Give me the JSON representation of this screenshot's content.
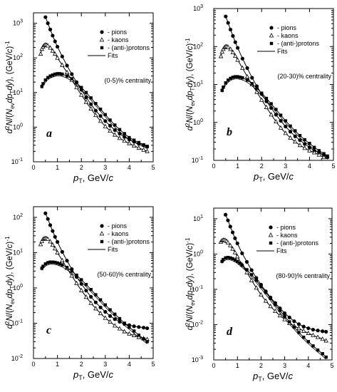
{
  "chart_data": [
    {
      "type": "scatter",
      "panel_label": "a",
      "centrality": "(0-5)% centrality",
      "xlabel": "p_T, GeV/c",
      "ylabel": "d^2N/(N_ev dp_T dy), (GeV/c)^-1",
      "x_range": [
        0,
        5
      ],
      "y_range": [
        0.1,
        2000
      ],
      "y_scale": "log",
      "x_ticks": [
        "0",
        "1",
        "2",
        "3",
        "4",
        "5"
      ],
      "y_ticks": [
        {
          "v": 0.1,
          "e": "-1"
        },
        {
          "v": 1,
          "e": "0"
        },
        {
          "v": 10,
          "e": "1"
        },
        {
          "v": 100,
          "e": "2"
        },
        {
          "v": 1000,
          "e": "3"
        }
      ],
      "legend": [
        "- pions",
        "- kaons",
        "- (anti-)protons",
        "Fits"
      ],
      "legend_placement": "top-right",
      "series": [
        {
          "name": "- pions",
          "marker": "filled-circle",
          "x": [
            0.5,
            0.6,
            0.7,
            0.8,
            0.9,
            1.0,
            1.2,
            1.4,
            1.6,
            1.8,
            2.0,
            2.2,
            2.4,
            2.6,
            2.8,
            3.0,
            3.2,
            3.4,
            3.6,
            3.8,
            4.0,
            4.2,
            4.4,
            4.6,
            4.75
          ],
          "y": [
            1500,
            1000,
            660,
            440,
            300,
            210,
            110,
            60,
            34,
            20,
            12,
            7.2,
            4.6,
            3.0,
            2.1,
            1.5,
            1.1,
            0.82,
            0.65,
            0.52,
            0.44,
            0.38,
            0.33,
            0.3,
            0.27
          ]
        },
        {
          "name": "- kaons",
          "marker": "open-triangle",
          "x": [
            0.3,
            0.35,
            0.4,
            0.45,
            0.5,
            0.55,
            0.6,
            0.7,
            0.8,
            0.9,
            1.0,
            1.2,
            1.4,
            1.6,
            1.8,
            2.0,
            2.2,
            2.4,
            2.6,
            2.8,
            3.0,
            3.2,
            3.4,
            3.6,
            3.8,
            4.0,
            4.2,
            4.4,
            4.6,
            4.75
          ],
          "y": [
            130,
            180,
            210,
            230,
            240,
            235,
            225,
            195,
            160,
            130,
            100,
            62,
            38,
            23,
            14,
            8.5,
            5.3,
            3.4,
            2.2,
            1.5,
            1.05,
            0.78,
            0.6,
            0.48,
            0.4,
            0.34,
            0.29,
            0.25,
            0.22,
            0.2
          ]
        },
        {
          "name": "- (anti-)protons",
          "marker": "filled-square",
          "x": [
            0.35,
            0.4,
            0.5,
            0.6,
            0.7,
            0.8,
            0.9,
            1.0,
            1.1,
            1.2,
            1.4,
            1.6,
            1.8,
            2.0,
            2.2,
            2.4,
            2.6,
            2.8,
            3.0,
            3.2,
            3.4,
            3.6,
            3.8,
            4.0,
            4.2,
            4.4,
            4.6,
            4.75
          ],
          "y": [
            15,
            18,
            23,
            27,
            30,
            32,
            34,
            35,
            35,
            34,
            30,
            25,
            19,
            14,
            10,
            7.0,
            4.8,
            3.3,
            2.3,
            1.6,
            1.15,
            0.85,
            0.65,
            0.5,
            0.42,
            0.36,
            0.31,
            0.28
          ]
        }
      ]
    },
    {
      "type": "scatter",
      "panel_label": "b",
      "centrality": "(20-30)% centrality",
      "xlabel": "p_T, GeV/c",
      "ylabel": "d^2N/(N_ev dp_T dy), (GeV/c)^-1",
      "x_range": [
        0,
        5
      ],
      "y_range": [
        0.1,
        1000
      ],
      "y_scale": "log",
      "x_ticks": [
        "0",
        "1",
        "2",
        "3",
        "4",
        "5"
      ],
      "y_ticks": [
        {
          "v": 0.1,
          "e": "-1"
        },
        {
          "v": 1,
          "e": "0"
        },
        {
          "v": 10,
          "e": "1"
        },
        {
          "v": 100,
          "e": "2"
        },
        {
          "v": 1000,
          "e": "3"
        }
      ],
      "legend": [
        "- pions",
        "- kaons",
        "- (anti-)protons",
        "Fits"
      ],
      "legend_placement": "top-right",
      "series": [
        {
          "name": "- pions",
          "marker": "filled-circle",
          "x": [
            0.5,
            0.6,
            0.7,
            0.8,
            0.9,
            1.0,
            1.2,
            1.4,
            1.6,
            1.8,
            2.0,
            2.2,
            2.4,
            2.6,
            2.8,
            3.0,
            3.2,
            3.4,
            3.6,
            3.8,
            4.0,
            4.2,
            4.4,
            4.6,
            4.75
          ],
          "y": [
            620,
            420,
            280,
            190,
            130,
            92,
            48,
            27,
            15,
            9,
            5.6,
            3.6,
            2.4,
            1.6,
            1.1,
            0.78,
            0.57,
            0.43,
            0.34,
            0.27,
            0.22,
            0.18,
            0.16,
            0.14,
            0.12
          ]
        },
        {
          "name": "- kaons",
          "marker": "open-triangle",
          "x": [
            0.3,
            0.35,
            0.4,
            0.45,
            0.5,
            0.55,
            0.6,
            0.7,
            0.8,
            0.9,
            1.0,
            1.2,
            1.4,
            1.6,
            1.8,
            2.0,
            2.2,
            2.4,
            2.6,
            2.8,
            3.0,
            3.2,
            3.4,
            3.6,
            3.8,
            4.0,
            4.2,
            4.4,
            4.6
          ],
          "y": [
            55,
            72,
            85,
            95,
            100,
            100,
            96,
            85,
            70,
            56,
            44,
            27,
            16,
            10,
            6.3,
            3.9,
            2.5,
            1.6,
            1.05,
            0.72,
            0.52,
            0.39,
            0.31,
            0.25,
            0.21,
            0.18,
            0.16,
            0.14,
            0.12
          ]
        },
        {
          "name": "- (anti-)protons",
          "marker": "filled-square",
          "x": [
            0.35,
            0.4,
            0.5,
            0.6,
            0.7,
            0.8,
            0.9,
            1.0,
            1.1,
            1.2,
            1.4,
            1.6,
            1.8,
            2.0,
            2.2,
            2.4,
            2.6,
            2.8,
            3.0,
            3.2,
            3.4,
            3.6,
            3.8,
            4.0,
            4.2,
            4.4,
            4.6,
            4.75
          ],
          "y": [
            7,
            8.5,
            11,
            13,
            14.5,
            15.5,
            16,
            16,
            15.5,
            15,
            13,
            10.5,
            8,
            5.9,
            4.3,
            3.1,
            2.2,
            1.55,
            1.1,
            0.8,
            0.6,
            0.45,
            0.35,
            0.28,
            0.22,
            0.18,
            0.15,
            0.13
          ]
        }
      ]
    },
    {
      "type": "scatter",
      "panel_label": "c",
      "centrality": "(50-60)% centrality",
      "xlabel": "p_T, GeV/c",
      "ylabel": "d^2N/(N_ev dp_T dy), (GeV/c)^-1",
      "x_range": [
        0,
        5
      ],
      "y_range": [
        0.01,
        200
      ],
      "y_scale": "log",
      "x_ticks": [
        "0",
        "1",
        "2",
        "3",
        "4",
        "5"
      ],
      "y_ticks": [
        {
          "v": 0.01,
          "e": "-2"
        },
        {
          "v": 0.1,
          "e": "-1"
        },
        {
          "v": 1,
          "e": "0"
        },
        {
          "v": 10,
          "e": "1"
        },
        {
          "v": 100,
          "e": "2"
        }
      ],
      "legend": [
        "- pions",
        "- kaons",
        "- (anti-)protons",
        "Fits"
      ],
      "legend_placement": "top-right",
      "series": [
        {
          "name": "- pions",
          "marker": "filled-circle",
          "x": [
            0.5,
            0.6,
            0.7,
            0.8,
            0.9,
            1.0,
            1.2,
            1.4,
            1.6,
            1.8,
            2.0,
            2.2,
            2.4,
            2.6,
            2.8,
            3.0,
            3.2,
            3.4,
            3.6,
            3.8,
            4.0,
            4.2,
            4.4,
            4.6,
            4.75
          ],
          "y": [
            130,
            90,
            60,
            41,
            28,
            20,
            10.5,
            5.9,
            3.4,
            2.05,
            1.3,
            0.84,
            0.56,
            0.39,
            0.28,
            0.21,
            0.16,
            0.13,
            0.11,
            0.095,
            0.088,
            0.082,
            0.078,
            0.075,
            0.072
          ]
        },
        {
          "name": "- kaons",
          "marker": "open-triangle",
          "x": [
            0.3,
            0.35,
            0.4,
            0.45,
            0.5,
            0.55,
            0.6,
            0.7,
            0.8,
            0.9,
            1.0,
            1.2,
            1.4,
            1.6,
            1.8,
            2.0,
            2.2,
            2.4,
            2.6,
            2.8,
            3.0,
            3.2,
            3.4,
            3.6,
            3.8,
            4.0,
            4.2,
            4.4,
            4.6,
            4.75
          ],
          "y": [
            17,
            21,
            24,
            25,
            25.5,
            25,
            24,
            20.5,
            16.5,
            13,
            10,
            6,
            3.6,
            2.2,
            1.35,
            0.85,
            0.55,
            0.37,
            0.26,
            0.19,
            0.14,
            0.11,
            0.085,
            0.07,
            0.058,
            0.05,
            0.045,
            0.04,
            0.037,
            0.035
          ]
        },
        {
          "name": "- (anti-)protons",
          "marker": "filled-square",
          "x": [
            0.35,
            0.4,
            0.5,
            0.6,
            0.7,
            0.8,
            0.9,
            1.0,
            1.1,
            1.2,
            1.4,
            1.6,
            1.8,
            2.0,
            2.2,
            2.4,
            2.6,
            2.8,
            3.0,
            3.2,
            3.4,
            3.6,
            3.8,
            4.0,
            4.2,
            4.4,
            4.6,
            4.75
          ],
          "y": [
            3.6,
            4.1,
            4.8,
            5.2,
            5.4,
            5.4,
            5.3,
            5.1,
            4.8,
            4.5,
            3.8,
            3.0,
            2.3,
            1.7,
            1.25,
            0.9,
            0.64,
            0.46,
            0.33,
            0.24,
            0.18,
            0.135,
            0.1,
            0.077,
            0.06,
            0.046,
            0.036,
            0.03
          ]
        }
      ]
    },
    {
      "type": "scatter",
      "panel_label": "d",
      "centrality": "(80-90)% centrality",
      "xlabel": "p_T, GeV/c",
      "ylabel": "d^2N/(N_ev dp_T dy), (GeV/c)^-1",
      "x_range": [
        0,
        5
      ],
      "y_range": [
        0.001,
        20
      ],
      "y_scale": "log",
      "x_ticks": [
        "0",
        "1",
        "2",
        "3",
        "4",
        "5"
      ],
      "y_ticks": [
        {
          "v": 0.001,
          "e": "-3"
        },
        {
          "v": 0.01,
          "e": "-2"
        },
        {
          "v": 0.1,
          "e": "-1"
        },
        {
          "v": 1,
          "e": "0"
        },
        {
          "v": 10,
          "e": "1"
        }
      ],
      "legend": [
        "- pions",
        "- kaons",
        "- (anti-)protons",
        "Fits"
      ],
      "legend_placement": "top-right",
      "series": [
        {
          "name": "- pions",
          "marker": "filled-circle",
          "x": [
            0.5,
            0.6,
            0.7,
            0.8,
            0.9,
            1.0,
            1.2,
            1.4,
            1.6,
            1.8,
            2.0,
            2.2,
            2.4,
            2.6,
            2.8,
            3.0,
            3.2,
            3.4,
            3.6,
            3.8,
            4.0,
            4.2,
            4.4,
            4.6,
            4.75
          ],
          "y": [
            13,
            9,
            6,
            4.1,
            2.8,
            2.0,
            1.05,
            0.6,
            0.35,
            0.21,
            0.135,
            0.088,
            0.059,
            0.041,
            0.029,
            0.021,
            0.016,
            0.0125,
            0.0103,
            0.0088,
            0.0079,
            0.0072,
            0.0068,
            0.0065,
            0.0063
          ]
        },
        {
          "name": "- kaons",
          "marker": "open-triangle",
          "x": [
            0.3,
            0.35,
            0.4,
            0.45,
            0.5,
            0.55,
            0.6,
            0.7,
            0.8,
            0.9,
            1.0,
            1.2,
            1.4,
            1.6,
            1.8,
            2.0,
            2.2,
            2.4,
            2.6,
            2.8,
            3.0,
            3.2,
            3.4,
            3.6,
            3.8,
            4.0,
            4.2,
            4.4,
            4.6,
            4.75
          ],
          "y": [
            2.2,
            2.4,
            2.5,
            2.5,
            2.4,
            2.3,
            2.1,
            1.75,
            1.4,
            1.1,
            0.85,
            0.5,
            0.3,
            0.18,
            0.11,
            0.07,
            0.047,
            0.033,
            0.024,
            0.018,
            0.014,
            0.011,
            0.0092,
            0.0078,
            0.0066,
            0.0057,
            0.005,
            0.0044,
            0.0039,
            0.0035
          ]
        },
        {
          "name": "- (anti-)protons",
          "marker": "filled-square",
          "x": [
            0.35,
            0.4,
            0.5,
            0.6,
            0.7,
            0.8,
            0.9,
            1.0,
            1.1,
            1.2,
            1.4,
            1.6,
            1.8,
            2.0,
            2.2,
            2.4,
            2.6,
            2.8,
            3.0,
            3.2,
            3.4,
            3.6,
            3.8,
            4.0,
            4.2,
            4.4,
            4.6,
            4.75
          ],
          "y": [
            0.62,
            0.7,
            0.78,
            0.8,
            0.78,
            0.74,
            0.68,
            0.62,
            0.55,
            0.48,
            0.36,
            0.26,
            0.18,
            0.12,
            0.082,
            0.055,
            0.037,
            0.025,
            0.017,
            0.012,
            0.0085,
            0.006,
            0.0044,
            0.0033,
            0.0025,
            0.0019,
            0.0015,
            0.0012
          ]
        }
      ]
    }
  ]
}
